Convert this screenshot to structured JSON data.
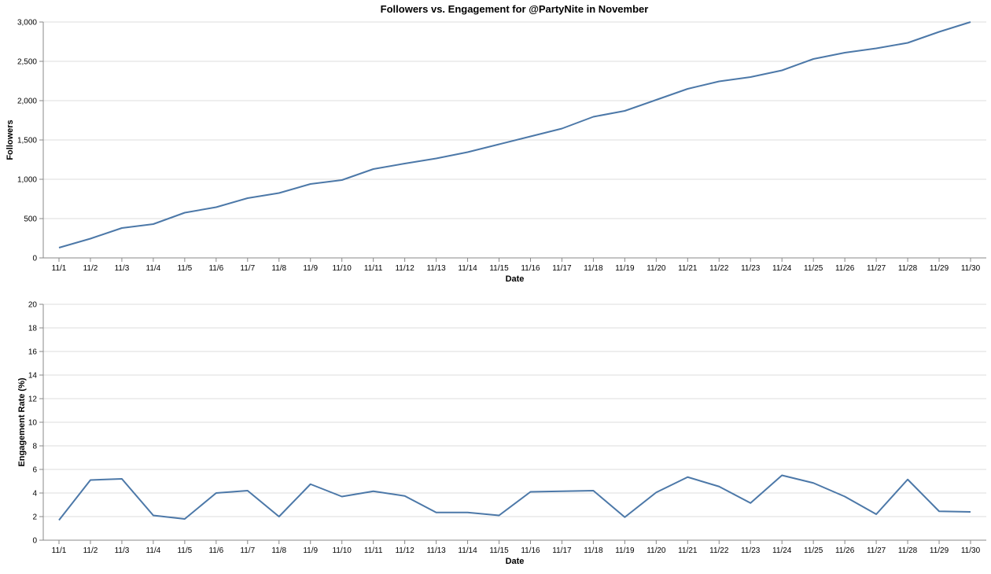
{
  "title": "Followers vs. Engagement for @PartyNite in November",
  "colors": {
    "line": "#4c78a8",
    "grid": "#dddddd",
    "axis": "#888888"
  },
  "chart_data": [
    {
      "type": "line",
      "xlabel": "Date",
      "ylabel": "Followers",
      "ylim": [
        0,
        3000
      ],
      "yticks": [
        0,
        500,
        1000,
        1500,
        2000,
        2500,
        3000
      ],
      "ytick_labels": [
        "0",
        "500",
        "1,000",
        "1,500",
        "2,000",
        "2,500",
        "3,000"
      ],
      "grid": true,
      "x": [
        "11/1",
        "11/2",
        "11/3",
        "11/4",
        "11/5",
        "11/6",
        "11/7",
        "11/8",
        "11/9",
        "11/10",
        "11/11",
        "11/12",
        "11/13",
        "11/14",
        "11/15",
        "11/16",
        "11/17",
        "11/18",
        "11/19",
        "11/20",
        "11/21",
        "11/22",
        "11/23",
        "11/24",
        "11/25",
        "11/26",
        "11/27",
        "11/28",
        "11/29",
        "11/30"
      ],
      "values": [
        130,
        245,
        380,
        430,
        575,
        645,
        760,
        825,
        940,
        990,
        1130,
        1200,
        1265,
        1345,
        1445,
        1545,
        1645,
        1795,
        1870,
        2010,
        2150,
        2245,
        2300,
        2385,
        2530,
        2610,
        2665,
        2735,
        2875,
        3000
      ]
    },
    {
      "type": "line",
      "xlabel": "Date",
      "ylabel": "Engagement Rate (%)",
      "ylim": [
        0,
        20
      ],
      "yticks": [
        0,
        2,
        4,
        6,
        8,
        10,
        12,
        14,
        16,
        18,
        20
      ],
      "ytick_labels": [
        "0",
        "2",
        "4",
        "6",
        "8",
        "10",
        "12",
        "14",
        "16",
        "18",
        "20"
      ],
      "grid": true,
      "x": [
        "11/1",
        "11/2",
        "11/3",
        "11/4",
        "11/5",
        "11/6",
        "11/7",
        "11/8",
        "11/9",
        "11/10",
        "11/11",
        "11/12",
        "11/13",
        "11/14",
        "11/15",
        "11/16",
        "11/17",
        "11/18",
        "11/19",
        "11/20",
        "11/21",
        "11/22",
        "11/23",
        "11/24",
        "11/25",
        "11/26",
        "11/27",
        "11/28",
        "11/29",
        "11/30"
      ],
      "values": [
        1.7,
        5.1,
        5.2,
        2.1,
        1.8,
        4.0,
        4.2,
        2.0,
        4.75,
        3.7,
        4.15,
        3.75,
        2.35,
        2.35,
        2.1,
        4.1,
        4.15,
        4.2,
        1.95,
        4.05,
        5.35,
        4.55,
        3.15,
        5.5,
        4.85,
        3.7,
        2.2,
        5.15,
        2.45,
        2.4
      ]
    }
  ]
}
